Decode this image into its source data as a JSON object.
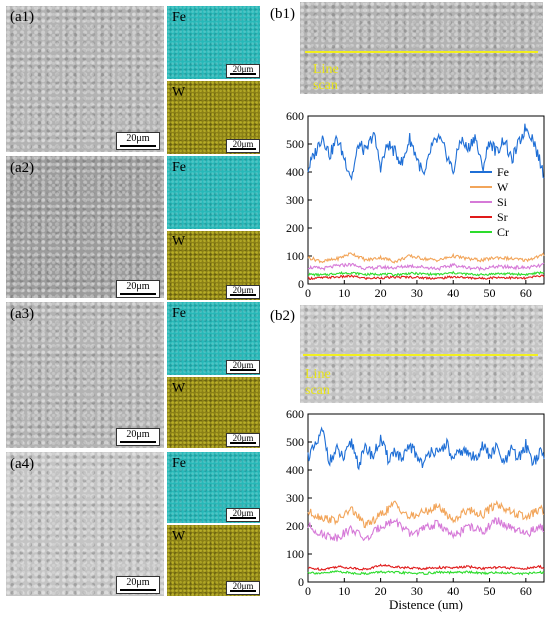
{
  "panels": {
    "a1": {
      "label": "(a1)",
      "scale": "20μm",
      "fe": "Fe",
      "w": "W",
      "map_scale_fe": "20μm",
      "map_scale_w": "20μm"
    },
    "a2": {
      "label": "(a2)",
      "scale": "20μm",
      "fe": "Fe",
      "w": "W",
      "map_scale_fe": "20μm",
      "map_scale_w": "20μm"
    },
    "a3": {
      "label": "(a3)",
      "scale": "20μm",
      "fe": "Fe",
      "w": "W",
      "map_scale_fe": "20μm",
      "map_scale_w": "20μm"
    },
    "a4": {
      "label": "(a4)",
      "scale": "20μm",
      "fe": "Fe",
      "w": "W",
      "map_scale_fe": "20μm",
      "map_scale_w": "20μm"
    },
    "b1": {
      "label": "(b1)",
      "scan": "Line scan"
    },
    "b2": {
      "label": "(b2)",
      "scan": "Line scan"
    }
  },
  "colors": {
    "Fe": "#1f6fd6",
    "W": "#f2a55a",
    "Si": "#d67ad8",
    "Sr": "#e01a1a",
    "Cr": "#2ddc2d"
  },
  "chart_data": [
    {
      "type": "line",
      "id": "b1",
      "xlabel": "",
      "ylabel": "",
      "xlim": [
        0,
        65
      ],
      "ylim": [
        0,
        600
      ],
      "xticks": [
        0,
        10,
        20,
        30,
        40,
        50,
        60
      ],
      "yticks": [
        0,
        100,
        200,
        300,
        400,
        500,
        600
      ],
      "legend_position": "right",
      "series": [
        {
          "name": "Fe",
          "x": [
            0,
            2,
            4,
            6,
            8,
            10,
            12,
            14,
            16,
            18,
            20,
            22,
            24,
            26,
            28,
            30,
            32,
            34,
            36,
            38,
            40,
            42,
            44,
            46,
            48,
            50,
            52,
            54,
            56,
            58,
            60,
            62,
            64,
            65
          ],
          "values": [
            410,
            470,
            530,
            460,
            520,
            450,
            380,
            500,
            470,
            540,
            420,
            500,
            470,
            430,
            520,
            450,
            380,
            490,
            520,
            470,
            400,
            520,
            480,
            530,
            410,
            510,
            470,
            520,
            440,
            500,
            560,
            520,
            430,
            390
          ]
        },
        {
          "name": "W",
          "x": [
            0,
            4,
            8,
            12,
            16,
            20,
            24,
            28,
            32,
            36,
            40,
            44,
            48,
            52,
            56,
            60,
            64,
            65
          ],
          "values": [
            95,
            80,
            90,
            110,
            85,
            95,
            80,
            100,
            90,
            85,
            100,
            90,
            85,
            95,
            90,
            85,
            100,
            105
          ]
        },
        {
          "name": "Si",
          "x": [
            0,
            4,
            8,
            12,
            16,
            20,
            24,
            28,
            32,
            36,
            40,
            44,
            48,
            52,
            56,
            60,
            64,
            65
          ],
          "values": [
            60,
            55,
            65,
            70,
            55,
            60,
            58,
            65,
            60,
            55,
            68,
            58,
            55,
            62,
            60,
            58,
            65,
            72
          ]
        },
        {
          "name": "Sr",
          "x": [
            0,
            4,
            8,
            12,
            16,
            20,
            24,
            28,
            32,
            36,
            40,
            44,
            48,
            52,
            56,
            60,
            64,
            65
          ],
          "values": [
            20,
            22,
            25,
            28,
            20,
            22,
            24,
            25,
            22,
            20,
            26,
            22,
            20,
            24,
            22,
            20,
            30,
            28
          ]
        },
        {
          "name": "Cr",
          "x": [
            0,
            4,
            8,
            12,
            16,
            20,
            24,
            28,
            32,
            36,
            40,
            44,
            48,
            52,
            56,
            60,
            64,
            65
          ],
          "values": [
            35,
            32,
            38,
            40,
            34,
            36,
            33,
            38,
            36,
            34,
            40,
            35,
            33,
            37,
            36,
            34,
            40,
            42
          ]
        }
      ]
    },
    {
      "type": "line",
      "id": "b2",
      "xlabel": "Distence (um)",
      "ylabel": "",
      "xlim": [
        0,
        65
      ],
      "ylim": [
        0,
        600
      ],
      "xticks": [
        0,
        10,
        20,
        30,
        40,
        50,
        60
      ],
      "yticks": [
        0,
        100,
        200,
        300,
        400,
        500,
        600
      ],
      "series": [
        {
          "name": "Fe",
          "x": [
            0,
            2,
            4,
            6,
            8,
            10,
            12,
            14,
            16,
            18,
            20,
            22,
            24,
            26,
            28,
            30,
            32,
            34,
            36,
            38,
            40,
            42,
            44,
            46,
            48,
            50,
            52,
            54,
            56,
            58,
            60,
            62,
            64,
            65
          ],
          "values": [
            450,
            480,
            540,
            430,
            470,
            440,
            500,
            420,
            480,
            450,
            510,
            440,
            470,
            430,
            490,
            450,
            420,
            480,
            450,
            500,
            430,
            470,
            460,
            440,
            490,
            450,
            480,
            420,
            470,
            440,
            490,
            430,
            460,
            450
          ]
        },
        {
          "name": "W",
          "x": [
            0,
            4,
            8,
            12,
            16,
            20,
            24,
            28,
            32,
            36,
            40,
            44,
            48,
            52,
            56,
            60,
            64,
            65
          ],
          "values": [
            250,
            230,
            220,
            260,
            200,
            240,
            280,
            230,
            250,
            270,
            220,
            260,
            240,
            280,
            250,
            230,
            260,
            250
          ]
        },
        {
          "name": "Si",
          "x": [
            0,
            4,
            8,
            12,
            16,
            20,
            24,
            28,
            32,
            36,
            40,
            44,
            48,
            52,
            56,
            60,
            64,
            65
          ],
          "values": [
            200,
            170,
            160,
            190,
            150,
            200,
            220,
            170,
            190,
            210,
            160,
            200,
            180,
            220,
            190,
            170,
            200,
            180
          ]
        },
        {
          "name": "Sr",
          "x": [
            0,
            4,
            8,
            12,
            16,
            20,
            24,
            28,
            32,
            36,
            40,
            44,
            48,
            52,
            56,
            60,
            64,
            65
          ],
          "values": [
            50,
            45,
            55,
            50,
            45,
            60,
            55,
            50,
            48,
            52,
            50,
            55,
            48,
            52,
            50,
            48,
            55,
            50
          ]
        },
        {
          "name": "Cr",
          "x": [
            0,
            4,
            8,
            12,
            16,
            20,
            24,
            28,
            32,
            36,
            40,
            44,
            48,
            52,
            56,
            60,
            64,
            65
          ],
          "values": [
            35,
            30,
            38,
            32,
            30,
            36,
            34,
            32,
            30,
            35,
            33,
            36,
            31,
            34,
            32,
            30,
            34,
            32
          ]
        }
      ]
    }
  ]
}
